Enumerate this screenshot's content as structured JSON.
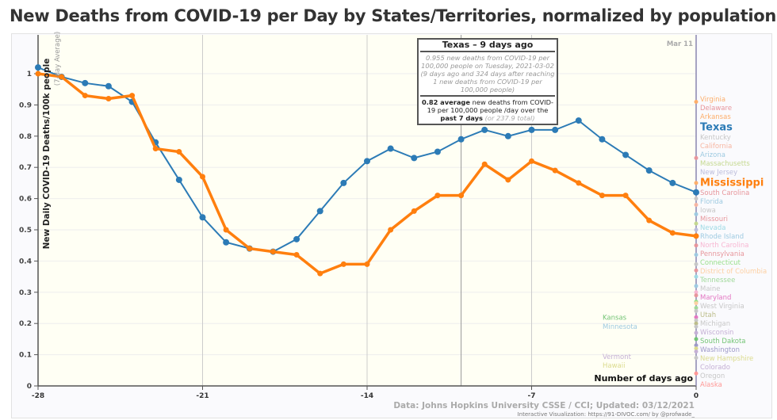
{
  "title": "New Deaths from COVID-19 per Day by States/Territories, normalized by population",
  "date_label": "Mar 11",
  "source": "Data: Johns Hopkins University CSSE / CCI; Updated: 03/12/2021",
  "credit": "Interactive Visualization: https://91-DIVOC.com/ by @profwade_",
  "tooltip": {
    "title": "Texas – 9 days ago",
    "detail": "0.955 new deaths from COVID-19 per 100,000 people on Tuesday, 2021-03-02 (9 days ago and 324 days after reaching 1 new deaths from COVID-19 per 100,000 people)",
    "avg_value": "0.82",
    "avg_word": "average",
    "avg_text": "new deaths from COVID-19 per 100,000 people /day over the",
    "avg_period": "past 7 days",
    "avg_total": "(or 237.9 total)"
  },
  "chart_data": {
    "type": "line",
    "title": "New Deaths from COVID-19 per Day by States/Territories, normalized by population",
    "xlabel": "Number of days ago",
    "ylabel": "New Daily COVID-19 Deaths/100k people",
    "ylabel_sub": "(7-day Average)",
    "xlim": [
      -28,
      0
    ],
    "ylim": [
      0,
      1.0
    ],
    "xticks": [
      -28,
      -21,
      -14,
      -7,
      0
    ],
    "yticks": [
      0,
      0.1,
      0.2,
      0.3,
      0.4,
      0.5,
      0.6,
      0.7,
      0.8,
      0.9,
      1
    ],
    "x": [
      -28,
      -27,
      -26,
      -25,
      -24,
      -23,
      -22,
      -21,
      -20,
      -19,
      -18,
      -17,
      -16,
      -15,
      -14,
      -13,
      -12,
      -11,
      -10,
      -9,
      -8,
      -7,
      -6,
      -5,
      -4,
      -3,
      -2,
      -1,
      0
    ],
    "series": [
      {
        "name": "Texas",
        "color": "#2c7bb6",
        "values": [
          1.02,
          0.99,
          0.97,
          0.96,
          0.91,
          0.78,
          0.66,
          0.54,
          0.46,
          0.44,
          0.43,
          0.47,
          0.56,
          0.65,
          0.72,
          0.76,
          0.73,
          0.75,
          0.79,
          0.82,
          0.8,
          0.82,
          0.82,
          0.85,
          0.79,
          0.74,
          0.69,
          0.65,
          0.62
        ]
      },
      {
        "name": "Mississippi",
        "color": "#ff7f0e",
        "values": [
          1.0,
          0.99,
          0.93,
          0.92,
          0.93,
          0.76,
          0.75,
          0.67,
          0.5,
          0.44,
          0.43,
          0.42,
          0.36,
          0.39,
          0.39,
          0.5,
          0.56,
          0.61,
          0.61,
          0.71,
          0.66,
          0.72,
          0.69,
          0.65,
          0.61,
          0.61,
          0.53,
          0.49,
          0.48
        ]
      }
    ],
    "other_states": [
      {
        "name": "Virginia",
        "value": 0.91,
        "color": "#fdae6b"
      },
      {
        "name": "Delaware",
        "value": 0.73,
        "color": "#e7969c"
      },
      {
        "name": "Arkansas",
        "value": 0.65,
        "color": "#fdae6b"
      },
      {
        "name": "Kentucky",
        "value": 0.6,
        "color": "#c7c7c7"
      },
      {
        "name": "California",
        "value": 0.58,
        "color": "#f7b6a2"
      },
      {
        "name": "Arizona",
        "value": 0.55,
        "color": "#9ecae1"
      },
      {
        "name": "Massachusetts",
        "value": 0.52,
        "color": "#c5d98f"
      },
      {
        "name": "New Jersey",
        "value": 0.5,
        "color": "#bcbddc"
      },
      {
        "name": "South Carolina",
        "value": 0.45,
        "color": "#e7969c"
      },
      {
        "name": "Florida",
        "value": 0.42,
        "color": "#9ecae1"
      },
      {
        "name": "Iowa",
        "value": 0.39,
        "color": "#c7c7c7"
      },
      {
        "name": "Missouri",
        "value": 0.37,
        "color": "#e7969c"
      },
      {
        "name": "Nevada",
        "value": 0.35,
        "color": "#9edae5"
      },
      {
        "name": "Rhode Island",
        "value": 0.32,
        "color": "#9ecae1"
      },
      {
        "name": "North Carolina",
        "value": 0.3,
        "color": "#f7b6d2"
      },
      {
        "name": "Pennsylvania",
        "value": 0.29,
        "color": "#e7969c"
      },
      {
        "name": "Connecticut",
        "value": 0.27,
        "color": "#98df8a"
      },
      {
        "name": "District of Columbia",
        "value": 0.265,
        "color": "#fdd0a2"
      },
      {
        "name": "Tennessee",
        "value": 0.25,
        "color": "#a1d99b"
      },
      {
        "name": "Maine",
        "value": 0.24,
        "color": "#c7c7c7"
      },
      {
        "name": "Maryland",
        "value": 0.22,
        "color": "#e377c2"
      },
      {
        "name": "West Virginia",
        "value": 0.21,
        "color": "#c7c7c7"
      },
      {
        "name": "Utah",
        "value": 0.2,
        "color": "#bcbd8a"
      },
      {
        "name": "Michigan",
        "value": 0.19,
        "color": "#c7c7c7"
      },
      {
        "name": "Wisconsin",
        "value": 0.17,
        "color": "#c5b0d5"
      },
      {
        "name": "South Dakota",
        "value": 0.15,
        "color": "#74c476"
      },
      {
        "name": "Washington",
        "value": 0.13,
        "color": "#9e9ac8"
      },
      {
        "name": "New Hampshire",
        "value": 0.12,
        "color": "#dbdb8d"
      },
      {
        "name": "Colorado",
        "value": 0.11,
        "color": "#c5b0d5"
      },
      {
        "name": "Oregon",
        "value": 0.09,
        "color": "#c7c7c7"
      },
      {
        "name": "Alaska",
        "value": 0.04,
        "color": "#ff9896"
      }
    ],
    "other_labels_inside": [
      {
        "name": "Kansas",
        "value": 0.22,
        "color": "#74c476"
      },
      {
        "name": "Minnesota",
        "value": 0.19,
        "color": "#9ecae1"
      },
      {
        "name": "Vermont",
        "value": 0.08,
        "color": "#c5b0d5"
      },
      {
        "name": "Hawaii",
        "value": 0.06,
        "color": "#dbdb8d"
      }
    ],
    "grid": true
  }
}
